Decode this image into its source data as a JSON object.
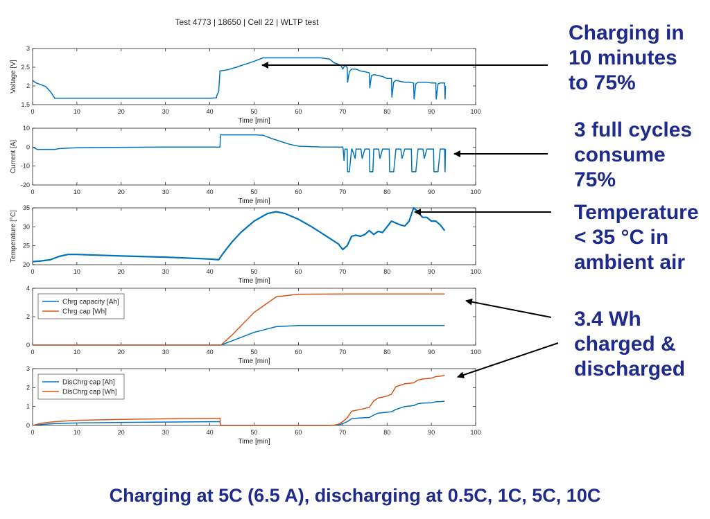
{
  "title": "Test 4773 | 18650 | Cell 22 | WLTP test",
  "footer": "Charging at 5C (6.5 A), discharging at 0.5C, 1C, 5C, 10C",
  "annotations": [
    {
      "lines": [
        "Charging in",
        "10 minutes",
        "to 75%"
      ]
    },
    {
      "lines": [
        "3 full cycles",
        "consume",
        "75%"
      ]
    },
    {
      "lines": [
        "Temperature",
        "< 35 °C in",
        "ambient air"
      ]
    },
    {
      "lines": [
        "3.4 Wh",
        "charged &",
        "discharged"
      ]
    }
  ],
  "colors": {
    "blue": "#0072bd",
    "orange": "#d95319",
    "text_accent": "#1e2a8c"
  },
  "chart_data": [
    {
      "type": "line",
      "ylabel": "Voltage [V]",
      "xlabel": "Time [min]",
      "xlim": [
        0,
        100
      ],
      "ylim": [
        1.5,
        3
      ],
      "xticks": [
        0,
        10,
        20,
        30,
        40,
        50,
        60,
        70,
        80,
        90,
        100
      ],
      "yticks": [
        1.5,
        2,
        2.5,
        3
      ],
      "series": [
        {
          "name": "Voltage",
          "color": "#0072bd",
          "x": [
            0,
            0.5,
            1,
            2,
            3,
            4,
            5,
            10,
            20,
            30,
            40,
            41.5,
            41.6,
            42,
            42.3,
            44,
            46,
            48,
            50,
            52,
            55,
            60,
            65,
            67,
            68,
            69,
            69.6,
            70,
            70.5,
            71,
            71.1,
            71.5,
            72,
            72.5,
            73,
            74,
            75,
            76,
            76.1,
            76.5,
            77,
            78,
            79,
            80,
            81,
            81.1,
            81.5,
            82,
            83,
            84,
            85,
            86,
            86.1,
            86.5,
            87,
            88,
            89,
            90,
            91,
            91.1,
            91.5,
            92,
            93,
            93.1,
            93.2
          ],
          "y": [
            2.15,
            2.1,
            2.07,
            2.03,
            1.98,
            1.85,
            1.67,
            1.67,
            1.67,
            1.67,
            1.67,
            1.68,
            1.75,
            1.85,
            2.4,
            2.43,
            2.5,
            2.58,
            2.66,
            2.75,
            2.75,
            2.75,
            2.75,
            2.72,
            2.62,
            2.58,
            2.55,
            2.45,
            2.55,
            2.5,
            2.1,
            2.38,
            2.45,
            2.45,
            2.45,
            2.4,
            2.38,
            2.35,
            1.95,
            2.28,
            2.3,
            2.28,
            2.25,
            2.2,
            2.2,
            1.7,
            2.1,
            2.15,
            2.12,
            2.1,
            2.1,
            2.08,
            1.65,
            2.05,
            2.1,
            2.1,
            2.1,
            2.08,
            2.08,
            1.65,
            2.05,
            2.08,
            2.08,
            1.65,
            2.0
          ]
        }
      ]
    },
    {
      "type": "line",
      "ylabel": "Current [A]",
      "xlabel": "Time [min]",
      "xlim": [
        0,
        100
      ],
      "ylim": [
        -20,
        10
      ],
      "xticks": [
        0,
        10,
        20,
        30,
        40,
        50,
        60,
        70,
        80,
        90,
        100
      ],
      "yticks": [
        -20,
        -10,
        0,
        10
      ],
      "series": [
        {
          "name": "Current",
          "color": "#0072bd",
          "x": [
            0,
            0.5,
            1,
            5,
            6,
            8,
            10,
            20,
            30,
            40,
            42.3,
            42.4,
            45,
            50,
            52,
            54,
            56,
            58,
            60,
            65,
            68,
            69,
            70,
            70.1,
            70.3,
            70.5,
            71,
            71.1,
            71.5,
            72,
            72.1,
            72.8,
            73,
            74,
            74.1,
            74.4,
            75,
            76,
            76.1,
            76.8,
            77,
            78,
            78.1,
            78.4,
            79,
            80,
            80.5,
            80.6,
            81.5,
            82,
            83,
            83.1,
            83.4,
            84,
            85,
            85.5,
            85.6,
            86.5,
            87,
            88,
            88.1,
            88.4,
            89,
            90,
            90.5,
            90.6,
            91.5,
            92,
            93,
            93.1,
            93.2
          ],
          "y": [
            0,
            -0.5,
            -1.2,
            -1.2,
            -0.8,
            -0.5,
            -0.3,
            -0.1,
            0,
            0,
            0,
            6.5,
            6.5,
            6.5,
            6.3,
            4.5,
            3,
            1.5,
            0.5,
            0.1,
            0,
            0,
            0,
            -1,
            -7,
            -1,
            -1,
            -13,
            -13,
            -1,
            -1,
            -6,
            -1,
            -1,
            -1,
            -6,
            -1,
            -1,
            -13,
            -13,
            -1,
            -1,
            -1,
            -6,
            -1,
            -1,
            -1,
            -13,
            -13,
            -1,
            -1,
            -1,
            -6,
            -1,
            -1,
            -1,
            -13,
            -13,
            -1,
            -1,
            -1,
            -6,
            -1,
            -1,
            -1,
            -13,
            -13,
            -1,
            -1,
            -13,
            -1
          ]
        }
      ]
    },
    {
      "type": "line",
      "ylabel": "Temperature [°C]",
      "xlabel": "Time [min]",
      "xlim": [
        0,
        100
      ],
      "ylim": [
        20,
        35
      ],
      "xticks": [
        0,
        10,
        20,
        30,
        40,
        50,
        60,
        70,
        80,
        90,
        100
      ],
      "yticks": [
        20,
        25,
        30,
        35
      ],
      "series": [
        {
          "name": "Temperature",
          "color": "#0072bd",
          "x": [
            0,
            2,
            4,
            6,
            8,
            10,
            15,
            20,
            30,
            40,
            42,
            43,
            45,
            47,
            50,
            53,
            55,
            57,
            60,
            63,
            65,
            67,
            69,
            70,
            71,
            72,
            73,
            74,
            75,
            76,
            77,
            78,
            79,
            80,
            81,
            82,
            83,
            84,
            85,
            86,
            87,
            88,
            89,
            90,
            91,
            92,
            93
          ],
          "y": [
            20.8,
            21,
            21.3,
            22.2,
            22.7,
            22.7,
            22.5,
            22.3,
            22,
            21.5,
            21.3,
            23,
            26,
            28.5,
            31.5,
            33.5,
            34,
            33.5,
            32,
            30,
            28.5,
            27,
            25.5,
            24,
            25,
            27.5,
            27.8,
            27.5,
            28,
            29,
            28,
            28.8,
            28.5,
            30,
            31.5,
            31,
            30.5,
            30.2,
            31.5,
            35,
            34,
            32.5,
            32.5,
            31.5,
            31.5,
            30.5,
            29
          ]
        }
      ]
    },
    {
      "type": "line",
      "ylabel": "",
      "xlabel": "Time [min]",
      "xlim": [
        0,
        100
      ],
      "ylim": [
        0,
        4
      ],
      "xticks": [
        0,
        10,
        20,
        30,
        40,
        50,
        60,
        70,
        80,
        90,
        100
      ],
      "yticks": [
        0,
        2,
        4
      ],
      "legend": "top-left",
      "series": [
        {
          "name": "Chrg capacity [Ah]",
          "color": "#0072bd",
          "x": [
            0,
            42,
            42.5,
            45,
            50,
            55,
            60,
            70,
            80,
            93
          ],
          "y": [
            0,
            0,
            0,
            0.3,
            0.9,
            1.3,
            1.38,
            1.38,
            1.38,
            1.38
          ]
        },
        {
          "name": "Chrg cap [Wh]",
          "color": "#d95319",
          "x": [
            0,
            42,
            42.5,
            45,
            50,
            55,
            60,
            70,
            80,
            93
          ],
          "y": [
            0,
            0,
            0,
            0.7,
            2.3,
            3.4,
            3.58,
            3.6,
            3.6,
            3.6
          ]
        }
      ]
    },
    {
      "type": "line",
      "ylabel": "",
      "xlabel": "Time [min]",
      "xlim": [
        0,
        100
      ],
      "ylim": [
        0,
        3
      ],
      "xticks": [
        0,
        10,
        20,
        30,
        40,
        50,
        60,
        70,
        80,
        90,
        100
      ],
      "yticks": [
        0,
        1,
        2,
        3
      ],
      "legend": "top-left",
      "series": [
        {
          "name": "DisChrg cap [Ah]",
          "color": "#0072bd",
          "x": [
            0,
            2,
            5,
            10,
            20,
            30,
            42,
            42.3,
            42.4,
            60,
            67,
            68,
            69,
            70,
            71,
            72,
            74,
            76,
            77,
            78,
            80,
            81,
            82,
            84,
            86,
            87,
            88,
            90,
            91,
            92,
            93
          ],
          "y": [
            0,
            0.05,
            0.1,
            0.13,
            0.16,
            0.18,
            0.2,
            0.2,
            0,
            0,
            0,
            0.01,
            0.03,
            0.1,
            0.2,
            0.35,
            0.4,
            0.42,
            0.55,
            0.65,
            0.7,
            0.72,
            0.85,
            1,
            1.05,
            1.15,
            1.18,
            1.2,
            1.25,
            1.26,
            1.28
          ]
        },
        {
          "name": "DisChrg cap [Wh]",
          "color": "#d95319",
          "x": [
            0,
            2,
            5,
            10,
            20,
            30,
            42,
            42.3,
            42.4,
            60,
            67,
            68,
            69,
            70,
            71,
            72,
            74,
            76,
            77,
            78,
            80,
            81,
            82,
            84,
            86,
            87,
            88,
            90,
            91,
            92,
            93
          ],
          "y": [
            0,
            0.12,
            0.2,
            0.27,
            0.32,
            0.35,
            0.38,
            0.38,
            0,
            0,
            0,
            0.02,
            0.06,
            0.2,
            0.4,
            0.75,
            0.85,
            0.95,
            1.3,
            1.45,
            1.55,
            1.65,
            2.05,
            2.2,
            2.25,
            2.4,
            2.45,
            2.5,
            2.58,
            2.6,
            2.65
          ]
        }
      ]
    }
  ]
}
